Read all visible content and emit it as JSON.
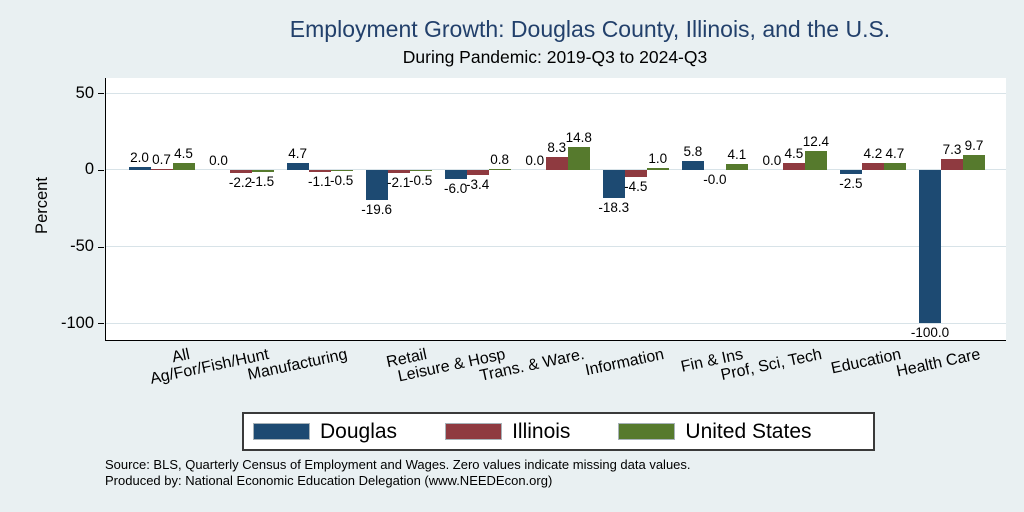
{
  "chart_data": {
    "type": "bar",
    "title": "Employment Growth: Douglas County, Illinois, and the U.S.",
    "subtitle": "During Pandemic: 2019-Q3 to 2024-Q3",
    "ylabel": "Percent",
    "xlabel": "",
    "categories": [
      "All",
      "Ag/For/Fish/Hunt",
      "Manufacturing",
      "Retail",
      "Leisure & Hosp",
      "Trans. & Ware.",
      "Information",
      "Fin & Ins",
      "Prof, Sci, Tech",
      "Education",
      "Health Care"
    ],
    "series": [
      {
        "name": "Douglas",
        "color": "#1d4a72",
        "values": [
          2.0,
          0.0,
          4.7,
          -19.6,
          -6.0,
          0.0,
          -18.3,
          5.8,
          0.0,
          -2.5,
          -100.0
        ],
        "labels": [
          "2.0",
          "0.0",
          "4.7",
          "-19.6",
          "-6.0",
          "0.0",
          "-18.3",
          "5.8",
          "0.0",
          "-2.5",
          "-100.0"
        ]
      },
      {
        "name": "Illinois",
        "color": "#8f3a40",
        "values": [
          0.7,
          -2.2,
          -1.1,
          -2.1,
          -3.4,
          8.3,
          -4.5,
          0.0,
          4.5,
          4.2,
          7.3
        ],
        "labels": [
          "0.7",
          "-2.2",
          "-1.1",
          "-2.1",
          "-3.4",
          "8.3",
          "-4.5",
          "-0.0",
          "4.5",
          "4.2",
          "7.3"
        ]
      },
      {
        "name": "United States",
        "color": "#567a2d",
        "values": [
          4.5,
          -1.5,
          -0.5,
          -0.5,
          0.8,
          14.8,
          1.0,
          4.1,
          12.4,
          4.7,
          9.7
        ],
        "labels": [
          "4.5",
          "-1.5",
          "-0.5",
          "-0.5",
          "0.8",
          "14.8",
          "1.0",
          "4.1",
          "12.4",
          "4.7",
          "9.7"
        ]
      }
    ],
    "yticks": [
      50,
      0,
      -50,
      -100
    ],
    "ylim": [
      -111,
      60
    ],
    "grid": true,
    "legend_position": "bottom"
  },
  "notes": {
    "source": "Source: BLS, Quarterly Census of Employment and Wages. Zero values indicate missing data values.",
    "produced_by": "Produced by: National Economic Education Delegation (www.NEEDEcon.org)"
  },
  "colors": {
    "background": "#e9f0f2",
    "plot_background": "#ffffff",
    "title": "#22406b",
    "gridline": "#d8e3e8",
    "axis": "#000000"
  }
}
